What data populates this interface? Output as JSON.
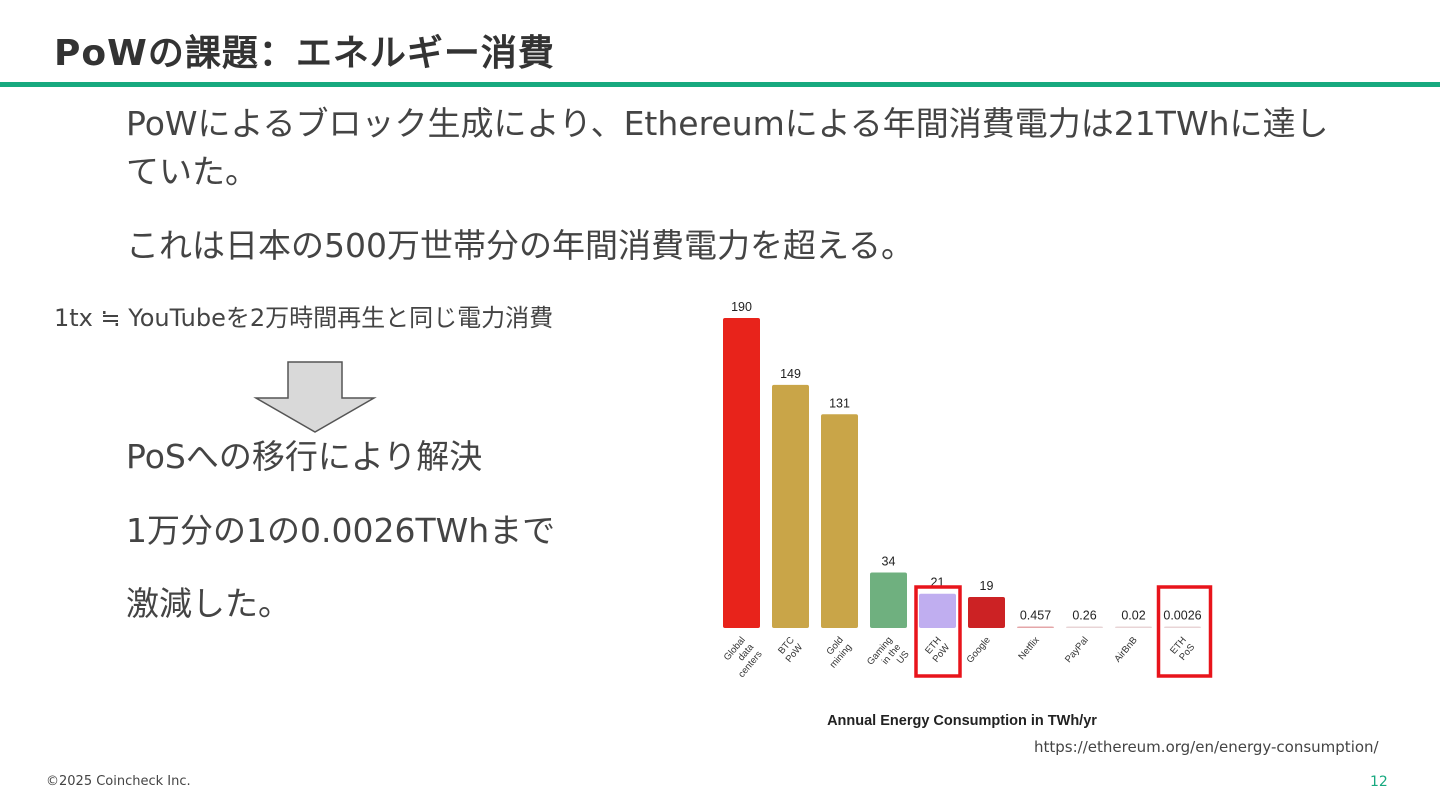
{
  "slide": {
    "title": "PoWの課題：エネルギー消費",
    "paragraph1": "PoWによるブロック生成により、Ethereumによる年間消費電力は21TWhに達していた。",
    "paragraph2": "これは日本の500万世帯分の年間消費電力を超える。",
    "equivalence": "1tx ≒ YouTubeを2万時間再生と同じ電力消費",
    "result1": "PoSへの移行により解決",
    "result2": "1万分の1の0.0026TWhまで",
    "result3": "激減した。",
    "source": "https://ethereum.org/en/energy-consumption/",
    "copyright": "©2025 Coincheck Inc.",
    "page_number": "12",
    "arrow_icon": "down-arrow-icon"
  },
  "colors": {
    "accent": "#17a97f",
    "highlight": "#e8141b"
  },
  "chart_data": {
    "type": "bar",
    "xlabel": "Annual Energy Consumption in TWh/yr",
    "categories": [
      "Global data centers",
      "BTC PoW",
      "Gold mining",
      "Gaming in the US",
      "ETH PoW",
      "Google",
      "Netflix",
      "PayPal",
      "AirBnB",
      "ETH PoS"
    ],
    "tick_lines": [
      [
        "Global",
        "data",
        "centers"
      ],
      [
        "BTC",
        "PoW"
      ],
      [
        "Gold",
        "mining"
      ],
      [
        "Gaming",
        "in the",
        "US"
      ],
      [
        "ETH",
        "PoW"
      ],
      [
        "Google"
      ],
      [
        "Netflix"
      ],
      [
        "PayPal"
      ],
      [
        "AirBnB"
      ],
      [
        "ETH",
        "PoS"
      ]
    ],
    "values": [
      190,
      149,
      131,
      34,
      21,
      19,
      0.457,
      0.26,
      0.02,
      0.0026
    ],
    "value_labels": [
      "190",
      "149",
      "131",
      "34",
      "21",
      "19",
      "0.457",
      "0.26",
      "0.02",
      "0.0026"
    ],
    "colors": [
      "#e8231b",
      "#c9a548",
      "#c9a548",
      "#6fb07f",
      "#c0aef0",
      "#cc2224",
      "#e4a6a8",
      "#e8d4d6",
      "#e8d4d6",
      "#e8d4d6"
    ],
    "highlighted": [
      "ETH PoW",
      "ETH PoS"
    ],
    "ylim": [
      0,
      190
    ],
    "grid": false
  }
}
